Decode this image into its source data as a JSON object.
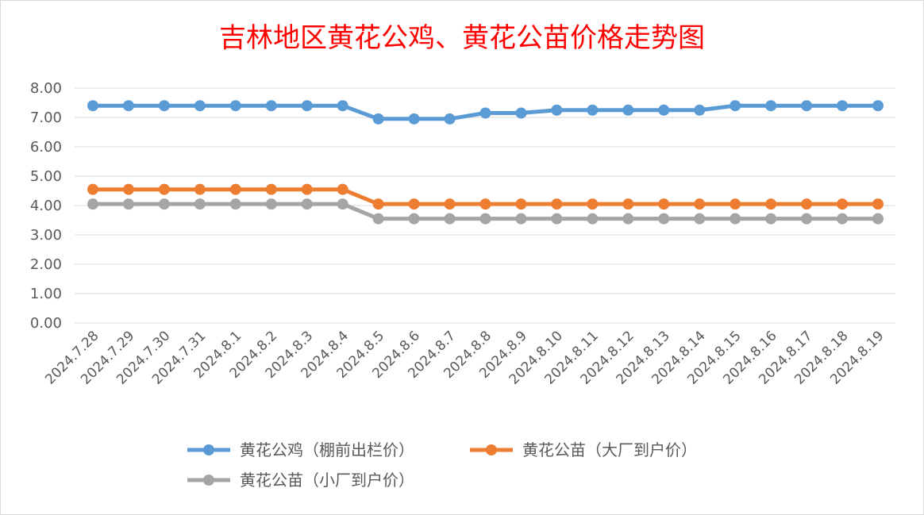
{
  "chart_data": {
    "type": "line",
    "title": "吉林地区黄花公鸡、黄花公苗价格走势图",
    "ylim": [
      0,
      8
    ],
    "yticks": [
      "0.00",
      "1.00",
      "2.00",
      "3.00",
      "4.00",
      "5.00",
      "6.00",
      "7.00",
      "8.00"
    ],
    "grid": "horizontal",
    "legend": "bottom",
    "categories": [
      "2024.7.28",
      "2024.7.29",
      "2024.7.30",
      "2024.7.31",
      "2024.8.1",
      "2024.8.2",
      "2024.8.3",
      "2024.8.4",
      "2024.8.5",
      "2024.8.6",
      "2024.8.7",
      "2024.8.8",
      "2024.8.9",
      "2024.8.10",
      "2024.8.11",
      "2024.8.12",
      "2024.8.13",
      "2024.8.14",
      "2024.8.15",
      "2024.8.16",
      "2024.8.17",
      "2024.8.18",
      "2024.8.19"
    ],
    "series": [
      {
        "name": "黄花公鸡（棚前出栏价）",
        "color": "#5b9bd5",
        "values": [
          7.4,
          7.4,
          7.4,
          7.4,
          7.4,
          7.4,
          7.4,
          7.4,
          6.95,
          6.95,
          6.95,
          7.15,
          7.15,
          7.25,
          7.25,
          7.25,
          7.25,
          7.25,
          7.4,
          7.4,
          7.4,
          7.4,
          7.4
        ]
      },
      {
        "name": "黄花公苗（大厂到户价）",
        "color": "#ed7d31",
        "values": [
          4.55,
          4.55,
          4.55,
          4.55,
          4.55,
          4.55,
          4.55,
          4.55,
          4.05,
          4.05,
          4.05,
          4.05,
          4.05,
          4.05,
          4.05,
          4.05,
          4.05,
          4.05,
          4.05,
          4.05,
          4.05,
          4.05,
          4.05
        ]
      },
      {
        "name": "黄花公苗（小厂到户价）",
        "color": "#a5a5a5",
        "values": [
          4.05,
          4.05,
          4.05,
          4.05,
          4.05,
          4.05,
          4.05,
          4.05,
          3.55,
          3.55,
          3.55,
          3.55,
          3.55,
          3.55,
          3.55,
          3.55,
          3.55,
          3.55,
          3.55,
          3.55,
          3.55,
          3.55,
          3.55
        ]
      }
    ]
  }
}
